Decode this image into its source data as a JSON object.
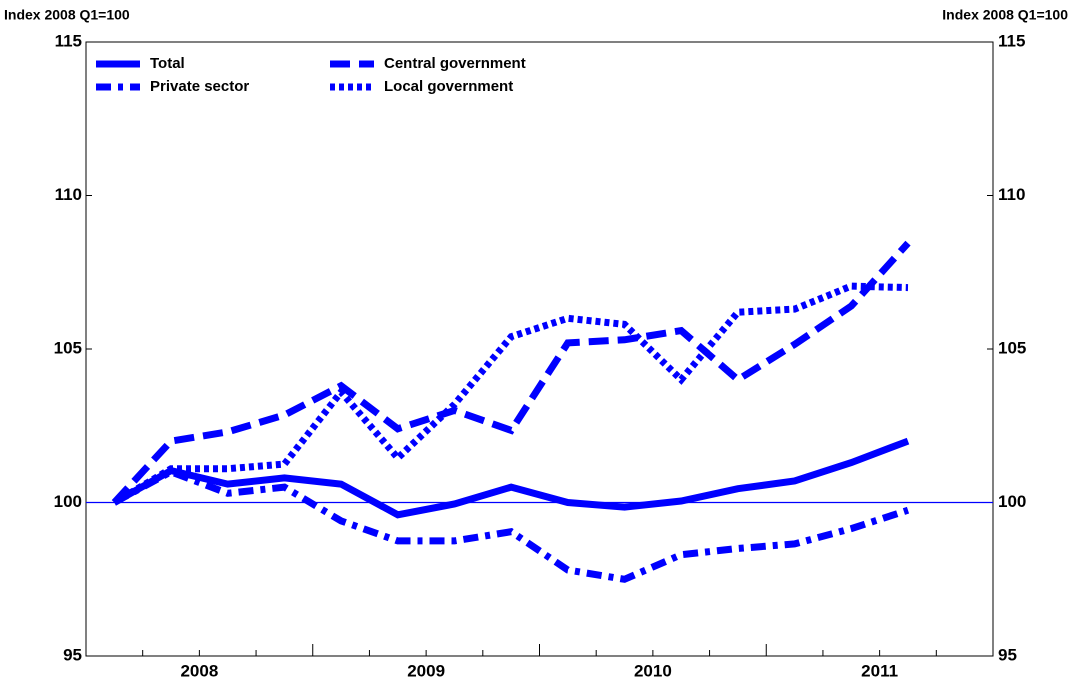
{
  "chart_data": {
    "type": "line",
    "ylabel": "Index 2008 Q1=100",
    "y2label": "Index 2008 Q1=100",
    "x": [
      2008.125,
      2008.375,
      2008.625,
      2008.875,
      2009.125,
      2009.375,
      2009.625,
      2009.875,
      2010.125,
      2010.375,
      2010.625,
      2010.875,
      2011.125,
      2011.375,
      2011.625
    ],
    "xlim": [
      2008,
      2012
    ],
    "xticks": [
      {
        "value": 2008.5,
        "label": "2008"
      },
      {
        "value": 2009.5,
        "label": "2009"
      },
      {
        "value": 2010.5,
        "label": "2010"
      },
      {
        "value": 2011.5,
        "label": "2011"
      }
    ],
    "ylim": [
      95,
      115
    ],
    "yticks": [
      95,
      100,
      105,
      110,
      115
    ],
    "y2lim": [
      95,
      115
    ],
    "y2ticks": [
      95,
      100,
      105,
      110,
      115
    ],
    "reference_line": 100,
    "legend": "top-left",
    "series": [
      {
        "name": "Total",
        "color": "#0000ff",
        "dash": "solid",
        "values": [
          100,
          101.04,
          100.6,
          100.8,
          100.6,
          99.6,
          99.95,
          100.5,
          100.0,
          99.85,
          100.05,
          100.45,
          100.7,
          101.3,
          102.0
        ]
      },
      {
        "name": "Central government",
        "color": "#0000ff",
        "dash": "dashed",
        "values": [
          100,
          102.0,
          102.3,
          102.85,
          103.8,
          102.4,
          103.0,
          102.35,
          105.2,
          105.3,
          105.6,
          104.0,
          105.15,
          106.4,
          108.45
        ]
      },
      {
        "name": "Private sector",
        "color": "#0000ff",
        "dash": "dashdot",
        "values": [
          100,
          101.0,
          100.3,
          100.5,
          99.4,
          98.75,
          98.75,
          99.05,
          97.8,
          97.5,
          98.3,
          98.5,
          98.65,
          99.15,
          99.75
        ]
      },
      {
        "name": "Local government",
        "color": "#0000ff",
        "dash": "dotted",
        "values": [
          100,
          101.1,
          101.1,
          101.25,
          103.6,
          101.45,
          103.2,
          105.4,
          106.0,
          105.8,
          104.0,
          106.2,
          106.3,
          107.05,
          107.0
        ]
      }
    ]
  }
}
